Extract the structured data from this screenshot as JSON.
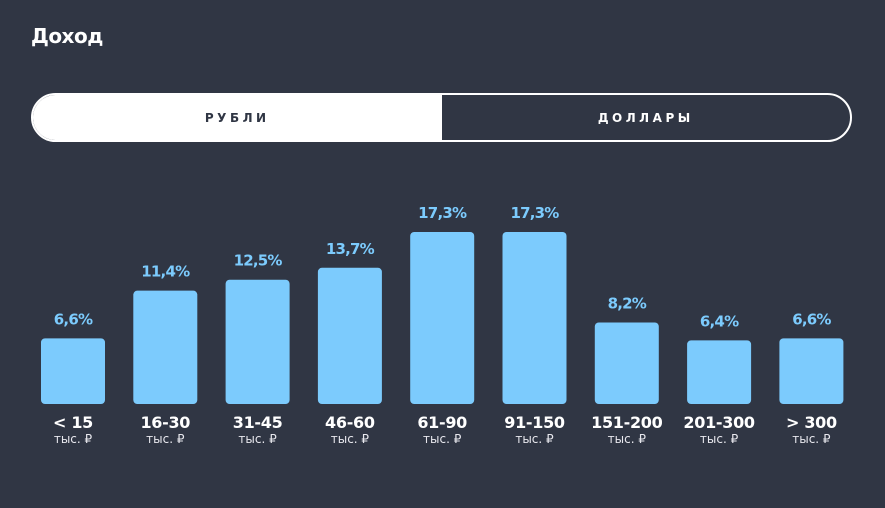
{
  "header": {
    "title": "Доход"
  },
  "currency_toggle": {
    "options": [
      {
        "label": "РУБЛИ",
        "active": true
      },
      {
        "label": "ДОЛЛАРЫ",
        "active": false
      }
    ]
  },
  "colors": {
    "background": "#303644",
    "bar": "#7ccbfd",
    "text": "#ffffff"
  },
  "chart_data": {
    "type": "bar",
    "title": "Доход",
    "categories": [
      "< 15",
      "16-30",
      "31-45",
      "46-60",
      "61-90",
      "91-150",
      "151-200",
      "201-300",
      "> 300"
    ],
    "unit_label": "тыс. ₽",
    "values": [
      6.6,
      11.4,
      12.5,
      13.7,
      17.3,
      17.3,
      8.2,
      6.4,
      6.6
    ],
    "value_labels": [
      "6,6%",
      "11,4%",
      "12,5%",
      "13,7%",
      "17,3%",
      "17,3%",
      "8,2%",
      "6,4%",
      "6,6%"
    ],
    "ylim": [
      0,
      17.3
    ],
    "grid": false
  }
}
